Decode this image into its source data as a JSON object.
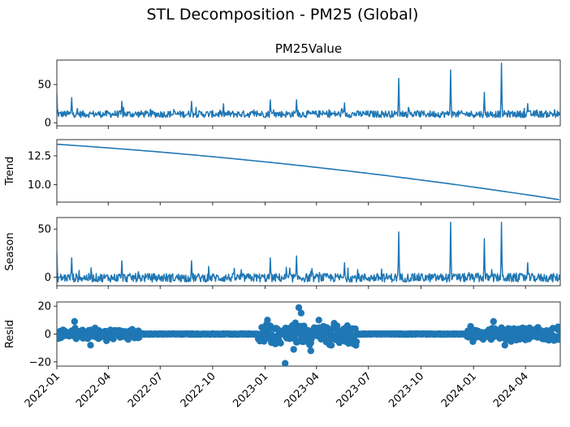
{
  "figure": {
    "title": "STL Decomposition - PM25 (Global)"
  },
  "chart_data": {
    "type": "line",
    "line_color": "#1f77b4",
    "x_range": [
      "2022-01-01",
      "2024-06-01"
    ],
    "x_ticks": [
      "2022-01",
      "2022-04",
      "2022-07",
      "2022-10",
      "2023-01",
      "2023-04",
      "2023-07",
      "2023-10",
      "2024-01",
      "2024-04"
    ],
    "panels": [
      {
        "key": "observed",
        "type": "line",
        "title": "PM25Value",
        "ylabel": "",
        "ylim": [
          -4,
          82
        ],
        "yticks": [
          0,
          50
        ],
        "ytick_labels": [
          "0",
          "50"
        ],
        "base": 10,
        "noise": 5,
        "spikes": [
          {
            "date": "2022-01-01",
            "value": 40
          },
          {
            "date": "2022-01-27",
            "value": 33
          },
          {
            "date": "2022-04-25",
            "value": 28
          },
          {
            "date": "2022-08-25",
            "value": 28
          },
          {
            "date": "2023-01-10",
            "value": 30
          },
          {
            "date": "2023-02-25",
            "value": 30
          },
          {
            "date": "2023-05-20",
            "value": 26
          },
          {
            "date": "2023-08-23",
            "value": 58
          },
          {
            "date": "2023-11-22",
            "value": 69
          },
          {
            "date": "2024-01-20",
            "value": 40
          },
          {
            "date": "2024-02-19",
            "value": 78
          },
          {
            "date": "2024-04-05",
            "value": 25
          }
        ]
      },
      {
        "key": "trend",
        "type": "line",
        "title": "",
        "ylabel": "Trend",
        "ylim": [
          8.5,
          13.9
        ],
        "yticks": [
          10.0,
          12.5
        ],
        "ytick_labels": [
          "10.0",
          "12.5"
        ],
        "start_value": 13.5,
        "end_value": 8.7
      },
      {
        "key": "seasonal",
        "type": "line",
        "title": "",
        "ylabel": "Season",
        "ylim": [
          -9,
          62
        ],
        "yticks": [
          0,
          50
        ],
        "ytick_labels": [
          "0",
          "50"
        ],
        "base": -2,
        "noise": 5,
        "spikes": [
          {
            "date": "2022-01-01",
            "value": 28
          },
          {
            "date": "2022-01-27",
            "value": 20
          },
          {
            "date": "2022-04-25",
            "value": 17
          },
          {
            "date": "2022-08-25",
            "value": 17
          },
          {
            "date": "2023-01-10",
            "value": 20
          },
          {
            "date": "2023-02-25",
            "value": 22
          },
          {
            "date": "2023-05-20",
            "value": 15
          },
          {
            "date": "2023-08-23",
            "value": 47
          },
          {
            "date": "2023-11-22",
            "value": 57
          },
          {
            "date": "2024-01-20",
            "value": 40
          },
          {
            "date": "2024-02-19",
            "value": 57
          },
          {
            "date": "2024-04-05",
            "value": 15
          }
        ]
      },
      {
        "key": "resid",
        "type": "scatter",
        "title": "",
        "ylabel": "Resid",
        "ylim": [
          -23,
          23
        ],
        "yticks": [
          -20,
          0,
          20
        ],
        "ytick_labels": [
          "−20",
          "0",
          "20"
        ],
        "zero_line": true,
        "active_periods": [
          {
            "start": "2022-01-01",
            "end": "2022-05-25",
            "amp": 5
          },
          {
            "start": "2022-12-20",
            "end": "2023-06-10",
            "amp": 9
          },
          {
            "start": "2023-12-20",
            "end": "2024-06-01",
            "amp": 6
          }
        ],
        "outliers": [
          {
            "date": "2022-02-01",
            "value": 9
          },
          {
            "date": "2022-03-01",
            "value": -8
          },
          {
            "date": "2023-01-05",
            "value": 10
          },
          {
            "date": "2023-02-05",
            "value": -21
          },
          {
            "date": "2023-02-20",
            "value": -11
          },
          {
            "date": "2023-03-01",
            "value": 19
          },
          {
            "date": "2023-03-05",
            "value": 15
          },
          {
            "date": "2023-03-22",
            "value": -12
          },
          {
            "date": "2023-04-05",
            "value": 10
          },
          {
            "date": "2023-05-25",
            "value": 6
          },
          {
            "date": "2024-02-05",
            "value": 9
          },
          {
            "date": "2024-02-25",
            "value": -8
          },
          {
            "date": "2024-05-10",
            "value": -4
          }
        ]
      }
    ]
  }
}
